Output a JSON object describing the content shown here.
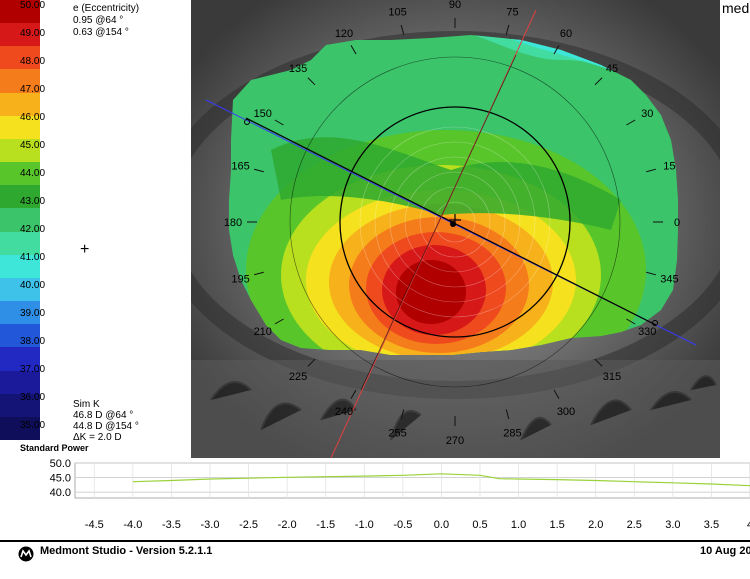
{
  "legend": {
    "colors": [
      "#b10000",
      "#d61818",
      "#ee4a1e",
      "#f57c1a",
      "#f7b11a",
      "#f5e11e",
      "#b8e01e",
      "#58c52a",
      "#2fa82f",
      "#3bc46a",
      "#42dca0",
      "#3ee6da",
      "#3fc2ea",
      "#2f8fe6",
      "#2257d9",
      "#2228c2",
      "#1a1a9a",
      "#141477",
      "#0e0e5a"
    ],
    "labels": [
      "50.00",
      "49.00",
      "48.00",
      "47.00",
      "46.00",
      "45.00",
      "44.00",
      "43.00",
      "42.00",
      "41.00",
      "40.00",
      "39.00",
      "38.00",
      "37.00",
      "36.00",
      "35.00"
    ]
  },
  "eccentricity": {
    "title": "e (Eccentricity)",
    "line1": "0.95 @64 °",
    "line2": "0.63 @154 °"
  },
  "simk": {
    "title": "Sim K",
    "line1": "46.8 D @64 °",
    "line2": "44.8 D @154 °",
    "line3": "ΔK = 2.0 D"
  },
  "standard_power_label": "Standard Power",
  "map": {
    "angle_labels": [
      "90",
      "75",
      "60",
      "45",
      "30",
      "15",
      "0",
      "345",
      "330",
      "315",
      "300",
      "285",
      "270",
      "255",
      "240",
      "225",
      "210",
      "195",
      "180",
      "165",
      "150",
      "135",
      "120",
      "105"
    ]
  },
  "brand_cut": "med",
  "profile": {
    "y_ticks": [
      "50.0",
      "45.0",
      "40.0"
    ],
    "x_ticks": [
      "-4.5",
      "-4.0",
      "-3.5",
      "-3.0",
      "-2.5",
      "-2.0",
      "-1.5",
      "-1.0",
      "-0.5",
      "0.0",
      "0.5",
      "1.0",
      "1.5",
      "2.0",
      "2.5",
      "3.0",
      "3.5",
      "4"
    ]
  },
  "chart_data": {
    "type": "line",
    "title": "",
    "xlabel": "",
    "ylabel": "",
    "ylim": [
      38,
      50
    ],
    "xlim": [
      -4.75,
      4.0
    ],
    "series": [
      {
        "x": [
          -4.0,
          -3.5,
          -3.0,
          -2.5,
          -2.0,
          -1.5,
          -1.0,
          -0.5,
          0.0,
          0.5,
          0.75,
          1.0,
          1.5,
          2.0,
          2.5,
          3.0,
          3.5,
          4.0
        ],
        "values": [
          43.6,
          44.0,
          44.5,
          44.8,
          45.1,
          45.3,
          45.5,
          45.8,
          46.3,
          45.8,
          44.6,
          44.5,
          44.3,
          44.0,
          43.6,
          43.2,
          42.8,
          42.2
        ]
      }
    ]
  },
  "footer": {
    "title": "Medmont Studio - Version 5.2.1.1",
    "date": "10 Aug 20"
  }
}
